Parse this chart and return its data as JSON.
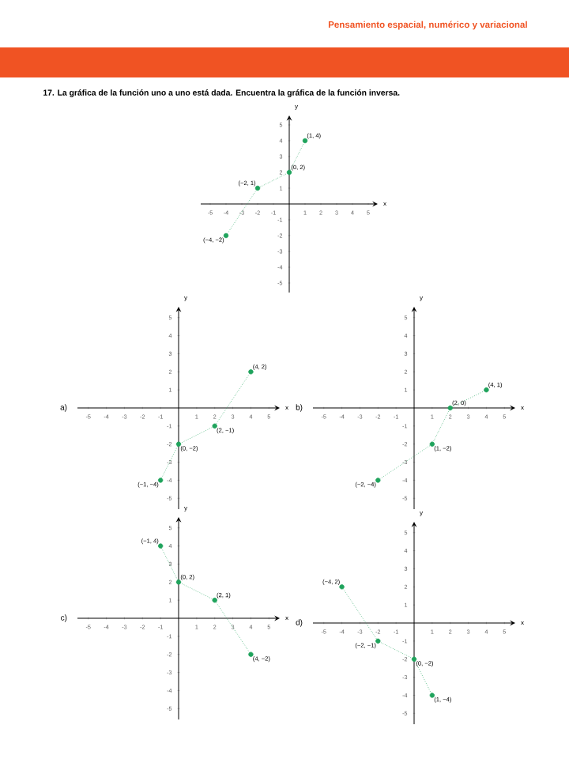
{
  "chart_data": [
    {
      "type": "line",
      "title": "17. La gráfica de la función uno a uno está dada. Encuentra la gráfica de la función inversa.",
      "annotations": [
        "Pensamiento espacial, numérico y variacional",
        {
          "text": "(1, 4)",
          "x": 1,
          "y": 4
        },
        {
          "text": "(0, 2)",
          "x": 0,
          "y": 2
        },
        {
          "text": "(−2, 1)",
          "x": -2,
          "y": 1
        },
        {
          "text": "(−4, −2)",
          "x": -4,
          "y": -2
        }
      ],
      "x": [
        -4,
        -2,
        0,
        1
      ],
      "values": [
        -2,
        1,
        2,
        4
      ],
      "color": "#1fa35c",
      "marker": "circle",
      "line_style": "dotted",
      "xlabel": "x",
      "ylabel": "y",
      "xlim": [
        -5.6,
        5.6
      ],
      "ylim": [
        -5.6,
        5.6
      ],
      "xticks": [
        -5,
        -4,
        -3,
        -2,
        -1,
        1,
        2,
        3,
        4,
        5
      ],
      "yticks": [
        -5,
        -4,
        -3,
        -2,
        -1,
        1,
        2,
        3,
        4,
        5
      ]
    },
    {
      "type": "line",
      "title": "a)",
      "annotations": [
        {
          "text": "(4, 2)",
          "x": 4,
          "y": 2
        },
        {
          "text": "(2, −1)",
          "x": 2,
          "y": -1
        },
        {
          "text": "(0, −2)",
          "x": 0,
          "y": -2
        },
        {
          "text": "(−1, −4)",
          "x": -1,
          "y": -4
        }
      ],
      "x": [
        -1,
        0,
        2,
        4
      ],
      "values": [
        -4,
        -2,
        -1,
        2
      ],
      "color": "#1fa35c",
      "marker": "circle",
      "line_style": "dotted",
      "xlabel": "x",
      "ylabel": "y",
      "xlim": [
        -5.6,
        5.6
      ],
      "ylim": [
        -5.6,
        5.6
      ],
      "xticks": [
        -5,
        -4,
        -3,
        -2,
        -1,
        1,
        2,
        3,
        4,
        5
      ],
      "yticks": [
        -5,
        -4,
        -3,
        -2,
        -1,
        1,
        2,
        3,
        4,
        5
      ]
    },
    {
      "type": "line",
      "title": "b)",
      "annotations": [
        {
          "text": "(4, 1)",
          "x": 4,
          "y": 1
        },
        {
          "text": "(2, 0)",
          "x": 2,
          "y": 0
        },
        {
          "text": "(1, −2)",
          "x": 1,
          "y": -2
        },
        {
          "text": "(−2, −4)",
          "x": -2,
          "y": -4
        }
      ],
      "x": [
        -2,
        1,
        2,
        4
      ],
      "values": [
        -4,
        -2,
        0,
        1
      ],
      "color": "#1fa35c",
      "marker": "circle",
      "line_style": "dotted",
      "xlabel": "x",
      "ylabel": "y",
      "xlim": [
        -5.6,
        5.6
      ],
      "ylim": [
        -5.6,
        5.6
      ],
      "xticks": [
        -5,
        -4,
        -3,
        -2,
        -1,
        1,
        2,
        3,
        4,
        5
      ],
      "yticks": [
        -5,
        -4,
        -3,
        -2,
        -1,
        1,
        2,
        3,
        4,
        5
      ]
    },
    {
      "type": "line",
      "title": "c)",
      "annotations": [
        {
          "text": "(−1, 4)",
          "x": -1,
          "y": 4
        },
        {
          "text": "(0, 2)",
          "x": 0,
          "y": 2
        },
        {
          "text": "(2, 1)",
          "x": 2,
          "y": 1
        },
        {
          "text": "(4, −2)",
          "x": 4,
          "y": -2
        }
      ],
      "x": [
        -1,
        0,
        2,
        4
      ],
      "values": [
        4,
        2,
        1,
        -2
      ],
      "color": "#1fa35c",
      "marker": "circle",
      "line_style": "dotted",
      "xlabel": "x",
      "ylabel": "y",
      "xlim": [
        -5.6,
        5.6
      ],
      "ylim": [
        -5.6,
        5.6
      ],
      "xticks": [
        -5,
        -4,
        -3,
        -2,
        -1,
        1,
        2,
        3,
        4,
        5
      ],
      "yticks": [
        -5,
        -4,
        -3,
        -2,
        -1,
        1,
        2,
        3,
        4,
        5
      ]
    },
    {
      "type": "line",
      "title": "d)",
      "annotations": [
        {
          "text": "(−4, 2)",
          "x": -4,
          "y": 2
        },
        {
          "text": "(−2, −1)",
          "x": -2,
          "y": -1
        },
        {
          "text": "(0, −2)",
          "x": 0,
          "y": -2
        },
        {
          "text": "(1, −4)",
          "x": 1,
          "y": -4
        }
      ],
      "x": [
        -4,
        -2,
        0,
        1
      ],
      "values": [
        2,
        -1,
        -2,
        -4
      ],
      "color": "#1fa35c",
      "marker": "circle",
      "line_style": "dotted",
      "xlabel": "x",
      "ylabel": "y",
      "xlim": [
        -5.6,
        5.6
      ],
      "ylim": [
        -5.6,
        5.6
      ],
      "xticks": [
        -5,
        -4,
        -3,
        -2,
        -1,
        1,
        2,
        3,
        4,
        5
      ],
      "yticks": [
        -5,
        -4,
        -3,
        -2,
        -1,
        1,
        2,
        3,
        4,
        5
      ]
    }
  ]
}
